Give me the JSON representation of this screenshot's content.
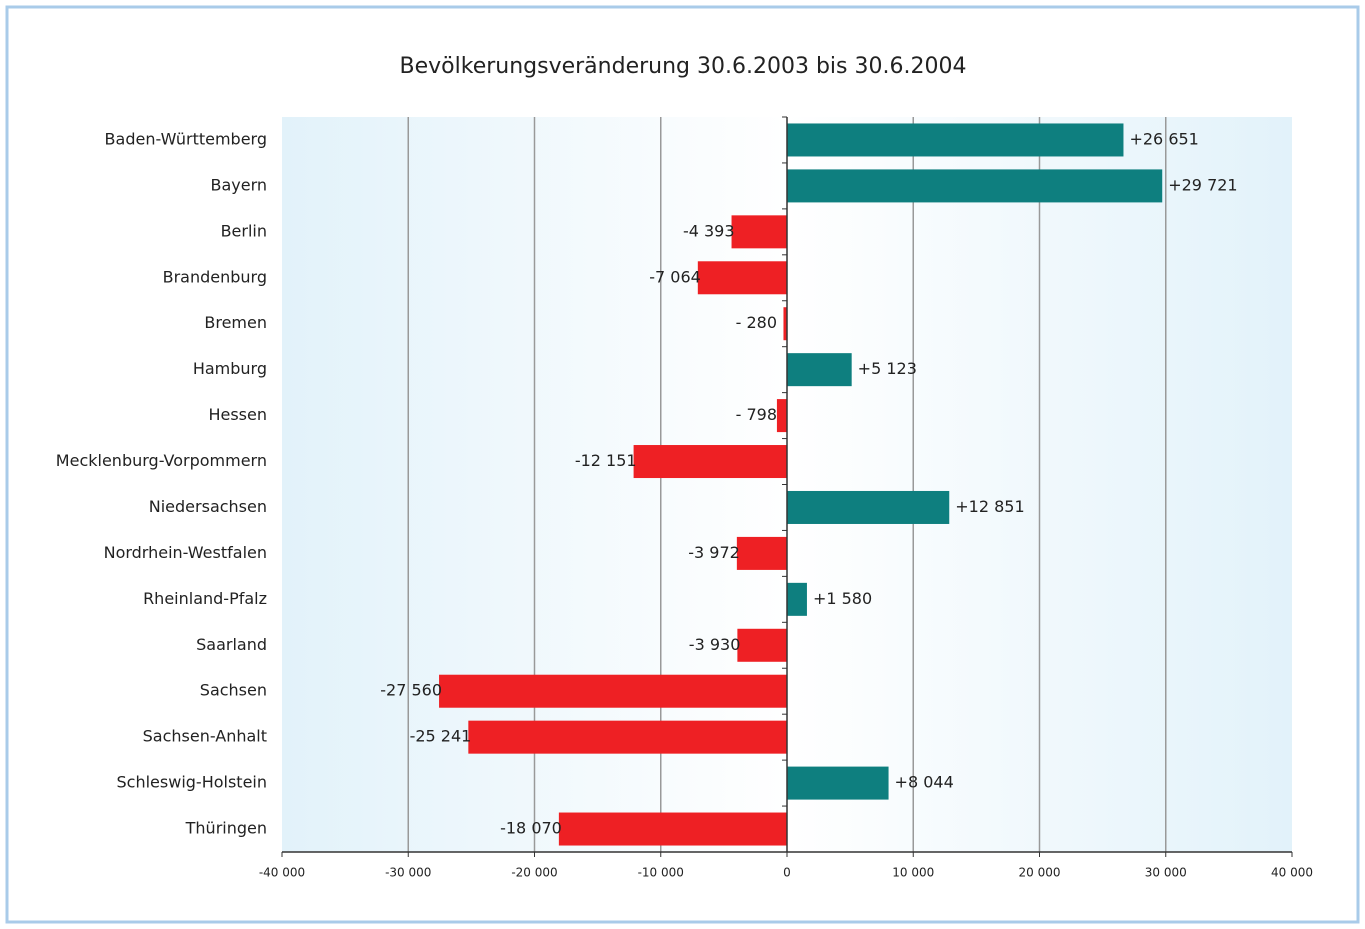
{
  "chart_data": {
    "type": "bar",
    "orientation": "horizontal",
    "title": "Bevölkerungsveränderung 30.6.2003 bis 30.6.2004",
    "categories": [
      "Baden-Württemberg",
      "Bayern",
      "Berlin",
      "Brandenburg",
      "Bremen",
      "Hamburg",
      "Hessen",
      "Mecklenburg-Vorpommern",
      "Niedersachsen",
      "Nordrhein-Westfalen",
      "Rheinland-Pfalz",
      "Saarland",
      "Sachsen",
      "Sachsen-Anhalt",
      "Schleswig-Holstein",
      "Thüringen"
    ],
    "values": [
      26651,
      29721,
      -4393,
      -7064,
      -280,
      5123,
      -798,
      -12151,
      12851,
      -3972,
      1580,
      -3930,
      -27560,
      -25241,
      8044,
      -18070
    ],
    "value_labels": [
      "+26 651",
      "+29 721",
      "-4 393",
      "-7 064",
      "- 280",
      "+5 123",
      "- 798",
      "-12 151",
      "+12 851",
      "-3 972",
      "+1 580",
      "-3 930",
      "-27 560",
      "-25 241",
      "+8 044",
      "-18 070"
    ],
    "positive_color": "#0e7f7f",
    "negative_color": "#ee2024",
    "xlim": [
      -40000,
      40000
    ],
    "xticks": [
      {
        "value": -40000,
        "label": "-40 000"
      },
      {
        "value": -30000,
        "label": "-30 000"
      },
      {
        "value": -20000,
        "label": "-20 000"
      },
      {
        "value": -10000,
        "label": "-10 000"
      },
      0,
      {
        "value": 10000,
        "label": "10 000"
      },
      {
        "value": 20000,
        "label": "20 000"
      },
      {
        "value": 30000,
        "label": "30 000"
      },
      {
        "value": 40000,
        "label": "40 000"
      }
    ],
    "grid": true
  }
}
